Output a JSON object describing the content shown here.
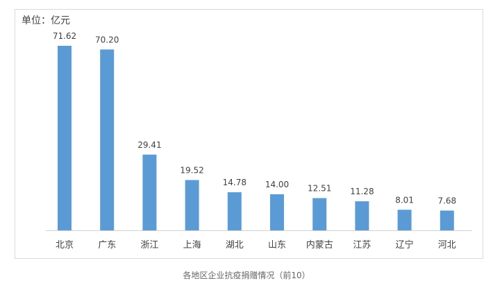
{
  "caption": "各地区企业抗疫捐赠情况（前10）",
  "chart_data": {
    "type": "bar",
    "unit_label": "单位：亿元",
    "categories": [
      "北京",
      "广东",
      "浙江",
      "上海",
      "湖北",
      "山东",
      "内蒙古",
      "江苏",
      "辽宁",
      "河北"
    ],
    "values": [
      71.62,
      70.2,
      29.41,
      19.52,
      14.78,
      14.0,
      12.51,
      11.28,
      8.01,
      7.68
    ],
    "data_labels": [
      "71.62",
      "70.20",
      "29.41",
      "19.52",
      "14.78",
      "14.00",
      "12.51",
      "11.28",
      "8.01",
      "7.68"
    ],
    "ylim": [
      0,
      80
    ],
    "bar_color": "#5b9bd5",
    "grid": false,
    "legend": "none"
  }
}
